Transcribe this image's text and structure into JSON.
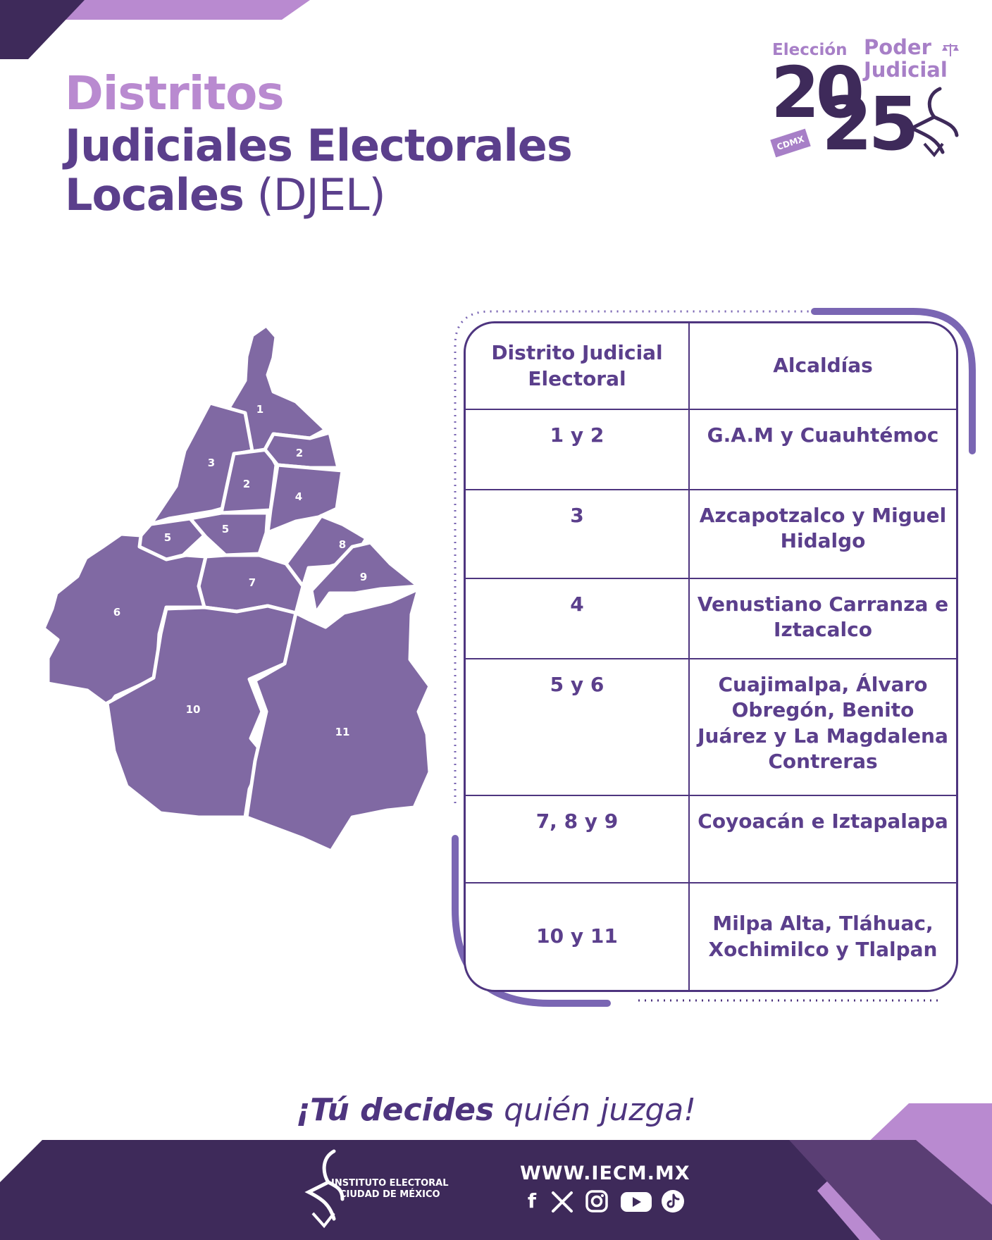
{
  "header": {
    "title_line1": "Distritos",
    "title_line2": "Judiciales Electorales",
    "title_line3_bold": "Locales",
    "title_line3_light": " (DJEL)"
  },
  "logo": {
    "eleccion": "Elección",
    "poder": "Poder",
    "judicial": "Judicial",
    "year_a": "20",
    "year_b": "25",
    "cdmx": "CDMX"
  },
  "map": {
    "labels": [
      "1",
      "2",
      "3",
      "2",
      "4",
      "5",
      "5",
      "8",
      "9",
      "7",
      "6",
      "10",
      "11"
    ]
  },
  "table": {
    "headers": [
      "Distrito Judicial Electoral",
      "Alcaldías"
    ],
    "rows": [
      {
        "district": "1 y 2",
        "alcaldias": "G.A.M y Cuauhtémoc"
      },
      {
        "district": "3",
        "alcaldias": "Azcapotzalco y Miguel Hidalgo"
      },
      {
        "district": "4",
        "alcaldias": "Venustiano Carranza e Iztacalco"
      },
      {
        "district": "5 y 6",
        "alcaldias": "Cuajimalpa, Álvaro Obregón, Benito Juárez y La Magdalena Contreras"
      },
      {
        "district": "7, 8 y 9",
        "alcaldias": "Coyoacán e Iztapalapa"
      },
      {
        "district": "10 y 11",
        "alcaldias": "Milpa Alta, Tláhuac, Xochimilco y Tlalpan"
      }
    ]
  },
  "slogan": {
    "bold": "¡Tú decides",
    "light": " quién juzga!"
  },
  "footer": {
    "institute_line1": "INSTITUTO ELECTORAL",
    "institute_line2": "CIUDAD DE MÉXICO",
    "url": "WWW.IECM.MX",
    "social_icons": [
      "facebook-icon",
      "x-icon",
      "instagram-icon",
      "youtube-icon",
      "tiktok-icon"
    ]
  },
  "colors": {
    "primary": "#5b3f8c",
    "light": "#b98ad0",
    "map_fill": "#8069a3",
    "footer_bg": "#3e2a5a"
  }
}
